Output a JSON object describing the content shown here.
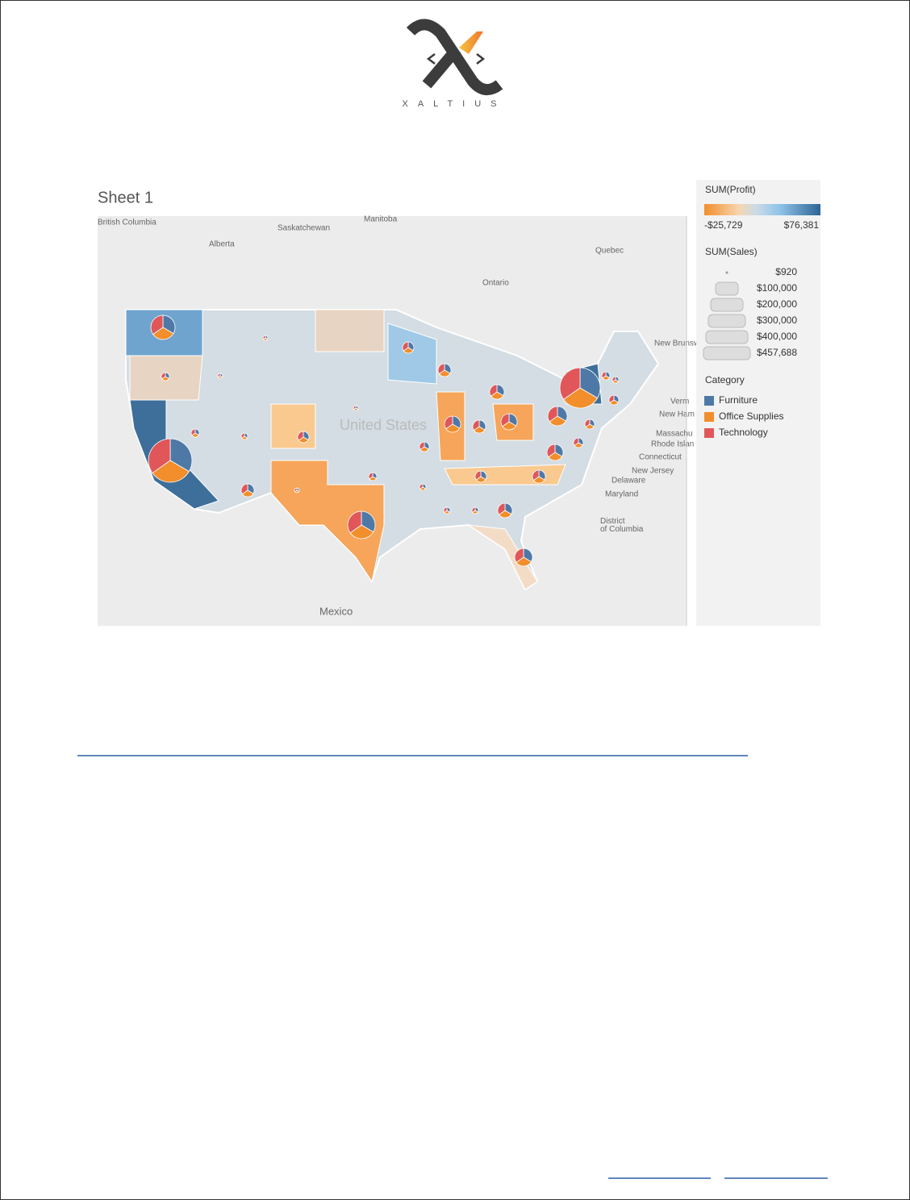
{
  "logo": {
    "text": "XALTIUS"
  },
  "sheet": {
    "title": "Sheet 1"
  },
  "map": {
    "labels": [
      "British Columbia",
      "Alberta",
      "Saskatchewan",
      "Manitoba",
      "Ontario",
      "Quebec",
      "New Brunswick",
      "United States",
      "Mexico",
      "Verm",
      "New Ham",
      "Massachu",
      "Rhode Islan",
      "Connecticut",
      "New Jersey",
      "Delaware",
      "Maryland",
      "District of Columbia"
    ]
  },
  "profit_legend": {
    "title": "SUM(Profit)",
    "min_label": "-$25,729",
    "max_label": "$76,381"
  },
  "sales_legend": {
    "title": "SUM(Sales)",
    "items": [
      "$920",
      "$100,000",
      "$200,000",
      "$300,000",
      "$400,000",
      "$457,688"
    ]
  },
  "category_legend": {
    "title": "Category",
    "items": [
      {
        "name": "Furniture",
        "color": "#4e79a7"
      },
      {
        "name": "Office Supplies",
        "color": "#f28e2b"
      },
      {
        "name": "Technology",
        "color": "#e15759"
      }
    ]
  }
}
